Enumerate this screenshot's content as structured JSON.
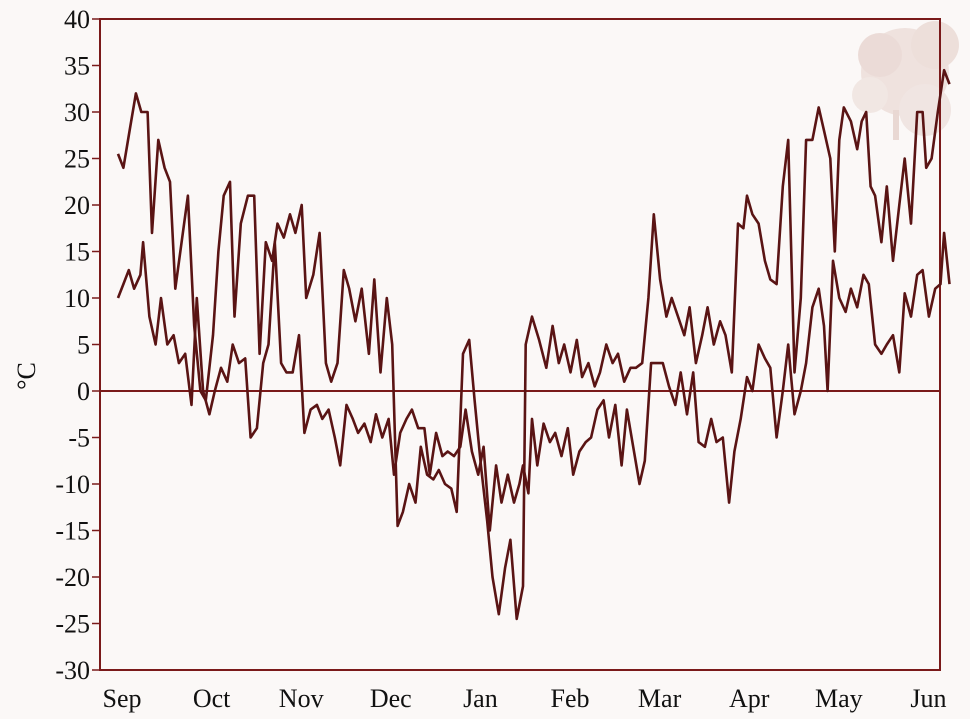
{
  "chart_data": {
    "type": "line",
    "ylabel": "°C",
    "xlabel": "",
    "title": "",
    "ylim": [
      -30,
      40
    ],
    "yticks": [
      40,
      35,
      30,
      25,
      20,
      15,
      10,
      5,
      0,
      -5,
      -10,
      -15,
      -20,
      -25,
      -30
    ],
    "months": [
      "Sep",
      "Oct",
      "Nov",
      "Dec",
      "Jan",
      "Feb",
      "Mar",
      "Apr",
      "May",
      "Jun"
    ],
    "x_unit": "month index (0 = Sep, 9 = Jun)",
    "grid": false,
    "zero_line": true,
    "colors": {
      "line": "#5a1414",
      "axis": "#7a1a1a",
      "background": "#fbf8f7"
    },
    "series": [
      {
        "points": [
          [
            0.0,
            25.5
          ],
          [
            0.06,
            24.0
          ],
          [
            0.13,
            28.0
          ],
          [
            0.2,
            32.0
          ],
          [
            0.26,
            30.0
          ],
          [
            0.33,
            30.0
          ],
          [
            0.38,
            17.0
          ],
          [
            0.45,
            27.0
          ],
          [
            0.52,
            24.0
          ],
          [
            0.58,
            22.5
          ],
          [
            0.64,
            11.0
          ],
          [
            0.71,
            16.0
          ],
          [
            0.78,
            21.0
          ],
          [
            0.85,
            7.0
          ],
          [
            0.92,
            0.0
          ],
          [
            0.98,
            -1.0
          ],
          [
            1.06,
            6.0
          ],
          [
            1.12,
            15.0
          ],
          [
            1.18,
            21.0
          ],
          [
            1.25,
            22.5
          ],
          [
            1.3,
            8.0
          ],
          [
            1.37,
            18.0
          ],
          [
            1.45,
            21.0
          ],
          [
            1.52,
            21.0
          ],
          [
            1.58,
            4.0
          ],
          [
            1.65,
            16.0
          ],
          [
            1.72,
            14.0
          ],
          [
            1.78,
            18.0
          ],
          [
            1.85,
            16.5
          ],
          [
            1.92,
            19.0
          ],
          [
            1.98,
            17.0
          ],
          [
            2.05,
            20.0
          ],
          [
            2.1,
            10.0
          ],
          [
            2.18,
            12.5
          ],
          [
            2.25,
            17.0
          ],
          [
            2.32,
            3.0
          ],
          [
            2.38,
            1.0
          ],
          [
            2.45,
            3.0
          ],
          [
            2.52,
            13.0
          ],
          [
            2.58,
            11.0
          ],
          [
            2.65,
            7.5
          ],
          [
            2.72,
            11.0
          ],
          [
            2.8,
            4.0
          ],
          [
            2.86,
            12.0
          ],
          [
            2.93,
            2.0
          ],
          [
            3.0,
            10.0
          ],
          [
            3.06,
            5.0
          ],
          [
            3.12,
            -14.5
          ],
          [
            3.18,
            -13.0
          ],
          [
            3.25,
            -10.0
          ],
          [
            3.32,
            -12.0
          ],
          [
            3.38,
            -6.0
          ],
          [
            3.45,
            -9.0
          ],
          [
            3.52,
            -9.5
          ],
          [
            3.58,
            -8.5
          ],
          [
            3.65,
            -10.0
          ],
          [
            3.72,
            -10.5
          ],
          [
            3.78,
            -13.0
          ],
          [
            3.85,
            4.0
          ],
          [
            3.92,
            5.5
          ],
          [
            3.98,
            -1.0
          ],
          [
            4.05,
            -8.0
          ],
          [
            4.12,
            -14.0
          ],
          [
            4.18,
            -20.0
          ],
          [
            4.25,
            -24.0
          ],
          [
            4.32,
            -19.0
          ],
          [
            4.38,
            -16.0
          ],
          [
            4.45,
            -24.5
          ],
          [
            4.52,
            -21.0
          ],
          [
            4.55,
            5.0
          ],
          [
            4.62,
            8.0
          ],
          [
            4.7,
            5.5
          ],
          [
            4.78,
            2.5
          ],
          [
            4.85,
            7.0
          ],
          [
            4.92,
            3.0
          ],
          [
            4.98,
            5.0
          ],
          [
            5.05,
            2.0
          ],
          [
            5.12,
            5.5
          ],
          [
            5.18,
            1.5
          ],
          [
            5.25,
            3.0
          ],
          [
            5.32,
            0.5
          ],
          [
            5.38,
            2.0
          ],
          [
            5.45,
            5.0
          ],
          [
            5.52,
            3.0
          ],
          [
            5.58,
            4.0
          ],
          [
            5.65,
            1.0
          ],
          [
            5.72,
            2.5
          ],
          [
            5.78,
            2.5
          ],
          [
            5.85,
            3.0
          ],
          [
            5.92,
            10.0
          ],
          [
            5.98,
            19.0
          ],
          [
            6.05,
            12.0
          ],
          [
            6.12,
            8.0
          ],
          [
            6.18,
            10.0
          ],
          [
            6.25,
            8.0
          ],
          [
            6.32,
            6.0
          ],
          [
            6.38,
            9.0
          ],
          [
            6.45,
            3.0
          ],
          [
            6.52,
            6.0
          ],
          [
            6.58,
            9.0
          ],
          [
            6.65,
            5.0
          ],
          [
            6.72,
            7.5
          ],
          [
            6.78,
            6.0
          ],
          [
            6.85,
            2.0
          ],
          [
            6.92,
            18.0
          ],
          [
            6.98,
            17.5
          ],
          [
            7.02,
            21.0
          ],
          [
            7.08,
            19.0
          ],
          [
            7.15,
            18.0
          ],
          [
            7.22,
            14.0
          ],
          [
            7.28,
            12.0
          ],
          [
            7.35,
            11.5
          ],
          [
            7.42,
            22.0
          ],
          [
            7.48,
            27.0
          ],
          [
            7.55,
            2.0
          ],
          [
            7.62,
            10.0
          ],
          [
            7.68,
            27.0
          ],
          [
            7.75,
            27.0
          ],
          [
            7.82,
            30.5
          ],
          [
            7.88,
            28.0
          ],
          [
            7.95,
            25.0
          ],
          [
            8.0,
            15.0
          ],
          [
            8.05,
            27.0
          ],
          [
            8.1,
            30.5
          ],
          [
            8.18,
            29.0
          ],
          [
            8.25,
            26.0
          ],
          [
            8.3,
            29.0
          ],
          [
            8.35,
            30.0
          ],
          [
            8.4,
            22.0
          ],
          [
            8.45,
            21.0
          ],
          [
            8.52,
            16.0
          ],
          [
            8.58,
            22.0
          ],
          [
            8.65,
            14.0
          ],
          [
            8.72,
            20.0
          ],
          [
            8.78,
            25.0
          ],
          [
            8.85,
            18.0
          ],
          [
            8.92,
            30.0
          ],
          [
            8.98,
            30.0
          ],
          [
            9.02,
            24.0
          ],
          [
            9.08,
            25.0
          ],
          [
            9.15,
            30.0
          ],
          [
            9.22,
            34.5
          ],
          [
            9.28,
            33.0
          ]
        ]
      },
      {
        "points": [
          [
            0.0,
            10.0
          ],
          [
            0.06,
            11.5
          ],
          [
            0.12,
            13.0
          ],
          [
            0.18,
            11.0
          ],
          [
            0.25,
            12.5
          ],
          [
            0.28,
            16.0
          ],
          [
            0.35,
            8.0
          ],
          [
            0.42,
            5.0
          ],
          [
            0.48,
            10.0
          ],
          [
            0.55,
            5.0
          ],
          [
            0.62,
            6.0
          ],
          [
            0.68,
            3.0
          ],
          [
            0.75,
            4.0
          ],
          [
            0.82,
            -1.5
          ],
          [
            0.88,
            10.0
          ],
          [
            0.95,
            0.0
          ],
          [
            1.02,
            -2.5
          ],
          [
            1.08,
            0.0
          ],
          [
            1.15,
            2.5
          ],
          [
            1.22,
            1.0
          ],
          [
            1.28,
            5.0
          ],
          [
            1.35,
            3.0
          ],
          [
            1.42,
            3.5
          ],
          [
            1.48,
            -5.0
          ],
          [
            1.55,
            -4.0
          ],
          [
            1.62,
            3.0
          ],
          [
            1.68,
            5.0
          ],
          [
            1.75,
            16.0
          ],
          [
            1.82,
            3.0
          ],
          [
            1.88,
            2.0
          ],
          [
            1.95,
            2.0
          ],
          [
            2.02,
            6.0
          ],
          [
            2.08,
            -4.5
          ],
          [
            2.15,
            -2.0
          ],
          [
            2.22,
            -1.5
          ],
          [
            2.28,
            -3.0
          ],
          [
            2.35,
            -2.0
          ],
          [
            2.42,
            -5.0
          ],
          [
            2.48,
            -8.0
          ],
          [
            2.55,
            -1.5
          ],
          [
            2.62,
            -3.0
          ],
          [
            2.68,
            -4.5
          ],
          [
            2.75,
            -3.5
          ],
          [
            2.82,
            -5.5
          ],
          [
            2.88,
            -2.5
          ],
          [
            2.95,
            -5.0
          ],
          [
            3.02,
            -3.0
          ],
          [
            3.08,
            -9.0
          ],
          [
            3.15,
            -4.5
          ],
          [
            3.22,
            -3.0
          ],
          [
            3.28,
            -2.0
          ],
          [
            3.35,
            -4.0
          ],
          [
            3.42,
            -4.0
          ],
          [
            3.48,
            -9.0
          ],
          [
            3.55,
            -4.5
          ],
          [
            3.62,
            -7.0
          ],
          [
            3.68,
            -6.5
          ],
          [
            3.75,
            -7.0
          ],
          [
            3.82,
            -6.0
          ],
          [
            3.88,
            -2.0
          ],
          [
            3.95,
            -6.5
          ],
          [
            4.02,
            -9.0
          ],
          [
            4.08,
            -6.0
          ],
          [
            4.15,
            -15.0
          ],
          [
            4.22,
            -8.0
          ],
          [
            4.28,
            -12.0
          ],
          [
            4.35,
            -9.0
          ],
          [
            4.42,
            -12.0
          ],
          [
            4.48,
            -10.0
          ],
          [
            4.52,
            -8.0
          ],
          [
            4.58,
            -11.0
          ],
          [
            4.62,
            -3.0
          ],
          [
            4.68,
            -8.0
          ],
          [
            4.75,
            -3.5
          ],
          [
            4.82,
            -5.5
          ],
          [
            4.88,
            -4.5
          ],
          [
            4.95,
            -7.0
          ],
          [
            5.02,
            -4.0
          ],
          [
            5.08,
            -9.0
          ],
          [
            5.15,
            -6.5
          ],
          [
            5.22,
            -5.5
          ],
          [
            5.28,
            -5.0
          ],
          [
            5.35,
            -2.0
          ],
          [
            5.42,
            -1.0
          ],
          [
            5.48,
            -5.0
          ],
          [
            5.55,
            -1.5
          ],
          [
            5.62,
            -8.0
          ],
          [
            5.68,
            -2.0
          ],
          [
            5.75,
            -6.0
          ],
          [
            5.82,
            -10.0
          ],
          [
            5.88,
            -7.5
          ],
          [
            5.95,
            3.0
          ],
          [
            6.02,
            3.0
          ],
          [
            6.08,
            3.0
          ],
          [
            6.15,
            0.5
          ],
          [
            6.22,
            -1.5
          ],
          [
            6.28,
            2.0
          ],
          [
            6.35,
            -2.5
          ],
          [
            6.42,
            2.0
          ],
          [
            6.48,
            -5.5
          ],
          [
            6.55,
            -6.0
          ],
          [
            6.62,
            -3.0
          ],
          [
            6.68,
            -5.5
          ],
          [
            6.75,
            -5.0
          ],
          [
            6.82,
            -12.0
          ],
          [
            6.88,
            -6.5
          ],
          [
            6.95,
            -3.0
          ],
          [
            7.02,
            1.5
          ],
          [
            7.08,
            0.0
          ],
          [
            7.15,
            5.0
          ],
          [
            7.22,
            3.5
          ],
          [
            7.28,
            2.5
          ],
          [
            7.35,
            -5.0
          ],
          [
            7.42,
            0.0
          ],
          [
            7.48,
            5.0
          ],
          [
            7.55,
            -2.5
          ],
          [
            7.62,
            0.0
          ],
          [
            7.68,
            3.0
          ],
          [
            7.75,
            9.0
          ],
          [
            7.82,
            11.0
          ],
          [
            7.88,
            7.0
          ],
          [
            7.92,
            0.0
          ],
          [
            7.98,
            14.0
          ],
          [
            8.05,
            10.0
          ],
          [
            8.12,
            8.5
          ],
          [
            8.18,
            11.0
          ],
          [
            8.25,
            9.0
          ],
          [
            8.32,
            12.5
          ],
          [
            8.38,
            11.5
          ],
          [
            8.45,
            5.0
          ],
          [
            8.52,
            4.0
          ],
          [
            8.58,
            5.0
          ],
          [
            8.65,
            6.0
          ],
          [
            8.72,
            2.0
          ],
          [
            8.78,
            10.5
          ],
          [
            8.85,
            8.0
          ],
          [
            8.92,
            12.5
          ],
          [
            8.98,
            13.0
          ],
          [
            9.05,
            8.0
          ],
          [
            9.12,
            11.0
          ],
          [
            9.18,
            11.5
          ],
          [
            9.22,
            17.0
          ],
          [
            9.28,
            11.5
          ]
        ]
      }
    ]
  }
}
